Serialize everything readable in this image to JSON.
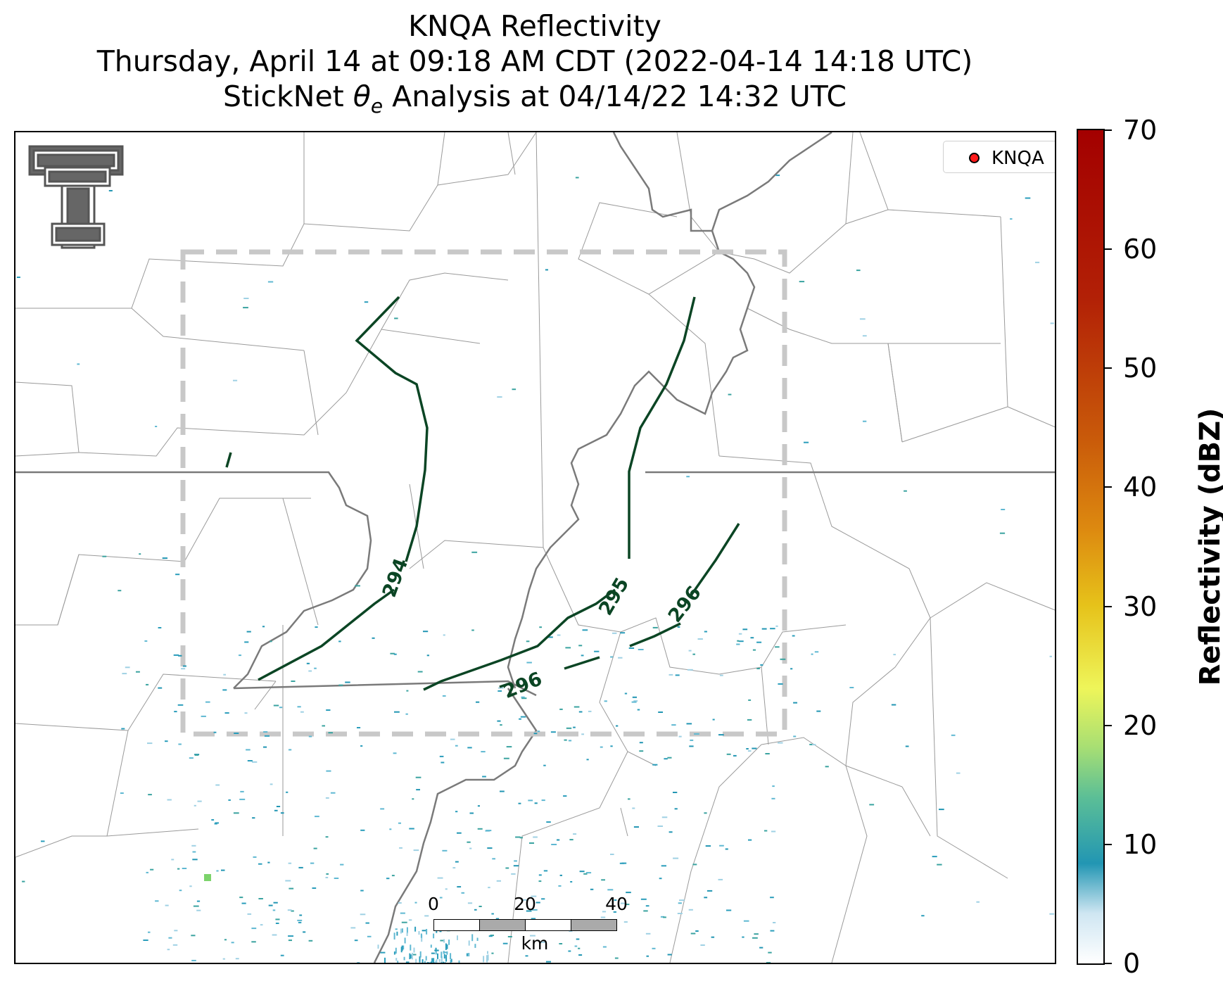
{
  "title": {
    "line1": "KNQA Reflectivity",
    "line2": "Thursday, April 14 at 09:18 AM CDT (2022-04-14 14:18 UTC)",
    "line3_prefix": "StickNet ",
    "line3_symbol": "θ",
    "line3_sub": "e",
    "line3_suffix": " Analysis at 04/14/22 14:32 UTC"
  },
  "legend": {
    "label": "KNQA",
    "marker_color": "#ff1a1a"
  },
  "logo": {
    "name": "texas-tech-double-t-logo",
    "color": "#555555"
  },
  "scalebar": {
    "ticks": [
      "0",
      "20",
      "40"
    ],
    "unit": "km"
  },
  "colorbar": {
    "label": "Reflectivity (dBZ)",
    "min": 0,
    "max": 70,
    "ticks": [
      "0",
      "10",
      "20",
      "30",
      "40",
      "50",
      "60",
      "70"
    ]
  },
  "contours": {
    "color": "#0b4524",
    "labels": [
      "294",
      "295",
      "296",
      "296"
    ]
  },
  "colors": {
    "analysis_box": "#c8c8c8",
    "county_lines": "#808080",
    "state_lines": "#7a7a7a"
  }
}
